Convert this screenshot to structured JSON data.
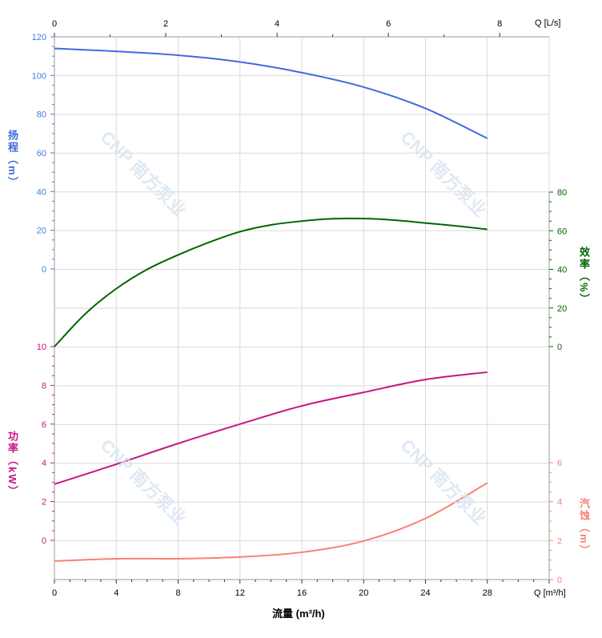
{
  "chart_data": {
    "type": "line",
    "watermark": "CNP 南方泵业",
    "xlabel": "流量 (m³/h)",
    "x_unit_label": "Q [m³/h]",
    "x_top_unit_label": "Q [L/s]",
    "xlim": [
      0,
      32
    ],
    "x_ticks": [
      0,
      4,
      8,
      12,
      16,
      20,
      24,
      28
    ],
    "x_top_ticks": [
      0,
      2,
      4,
      6,
      8
    ],
    "grid": true,
    "colors": {
      "head": "#4169e1",
      "efficiency": "#006400",
      "power": "#c71585",
      "npsh": "#fa8072"
    },
    "axes": {
      "head": {
        "label": "扬程（m）",
        "side": "left",
        "ticks": [
          0,
          20,
          40,
          60,
          80,
          100,
          120
        ],
        "ylim": [
          -40,
          120
        ]
      },
      "efficiency": {
        "label": "效率（%）",
        "side": "right",
        "ticks": [
          0,
          20,
          40,
          60,
          80
        ],
        "ylim": [
          0,
          80
        ]
      },
      "power": {
        "label": "功率（kW）",
        "side": "left",
        "ticks": [
          0,
          2,
          4,
          6,
          8,
          10
        ],
        "ylim": [
          -2,
          10
        ]
      },
      "npsh": {
        "label": "汽蚀（m）",
        "side": "right",
        "ticks": [
          0,
          2,
          4,
          6
        ],
        "ylim": [
          0,
          6
        ]
      }
    },
    "series": [
      {
        "key": "head",
        "x": [
          0,
          4,
          8,
          12,
          16,
          20,
          24,
          28
        ],
        "y": [
          114,
          112.5,
          110.5,
          107,
          101.5,
          94,
          83,
          67.5
        ]
      },
      {
        "key": "efficiency",
        "x": [
          0,
          2,
          4,
          6,
          8,
          10,
          12,
          14,
          16,
          18,
          20,
          22,
          24,
          26,
          28
        ],
        "y": [
          0,
          17,
          30,
          40,
          47.5,
          54,
          59.5,
          63,
          65,
          66.2,
          66.3,
          65.5,
          64,
          62.5,
          60.7
        ]
      },
      {
        "key": "power",
        "x": [
          0,
          4,
          8,
          12,
          16,
          20,
          24,
          28
        ],
        "y": [
          2.9,
          3.93,
          5.0,
          6.0,
          6.94,
          7.64,
          8.3,
          8.68
        ]
      },
      {
        "key": "npsh",
        "x": [
          0,
          4,
          8,
          12,
          16,
          20,
          24,
          28
        ],
        "y": [
          0.95,
          1.07,
          1.07,
          1.16,
          1.4,
          1.98,
          3.14,
          4.96
        ]
      }
    ]
  }
}
